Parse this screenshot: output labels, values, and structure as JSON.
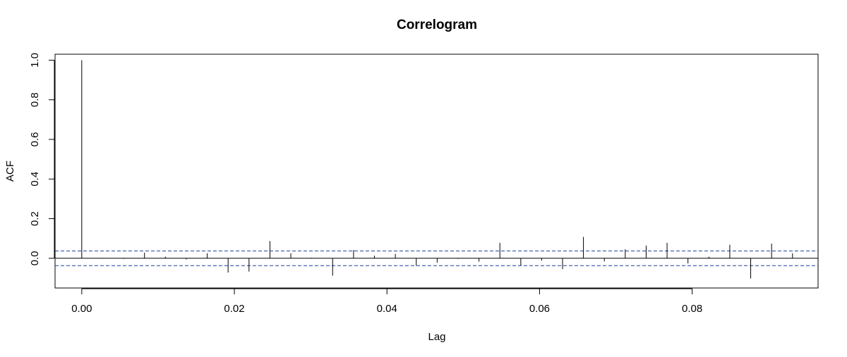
{
  "chart_data": {
    "type": "bar",
    "title": "Correlogram",
    "xlabel": "Lag",
    "ylabel": "ACF",
    "xlim": [
      -0.0035,
      0.0965
    ],
    "ylim": [
      -0.15,
      1.03
    ],
    "x_ticks": [
      0.0,
      0.02,
      0.04,
      0.06,
      0.08
    ],
    "x_tick_labels": [
      "0.00",
      "0.02",
      "0.04",
      "0.06",
      "0.08"
    ],
    "y_ticks": [
      0.0,
      0.2,
      0.4,
      0.6,
      0.8,
      1.0
    ],
    "y_tick_labels": [
      "0.0",
      "0.2",
      "0.4",
      "0.6",
      "0.8",
      "1.0"
    ],
    "confidence_bound": 0.037,
    "zero_line": true,
    "grid": false,
    "x": [
      0.0,
      0.00274,
      0.00548,
      0.00822,
      0.01096,
      0.0137,
      0.01644,
      0.01918,
      0.02192,
      0.02466,
      0.0274,
      0.03014,
      0.03288,
      0.03562,
      0.03836,
      0.0411,
      0.04384,
      0.04658,
      0.04932,
      0.05206,
      0.0548,
      0.05754,
      0.06027,
      0.06301,
      0.06575,
      0.06849,
      0.07123,
      0.07397,
      0.07671,
      0.07945,
      0.08219,
      0.08493,
      0.08767,
      0.09041,
      0.09315
    ],
    "values": [
      1.0,
      0.002,
      -0.003,
      0.028,
      0.008,
      -0.006,
      0.025,
      -0.072,
      -0.067,
      0.087,
      0.025,
      0.003,
      -0.088,
      0.042,
      0.013,
      0.022,
      -0.037,
      -0.022,
      -0.003,
      -0.017,
      0.078,
      -0.036,
      -0.012,
      -0.055,
      0.108,
      -0.016,
      0.045,
      0.064,
      0.078,
      -0.026,
      0.008,
      0.068,
      -0.102,
      0.074,
      0.025
    ]
  }
}
